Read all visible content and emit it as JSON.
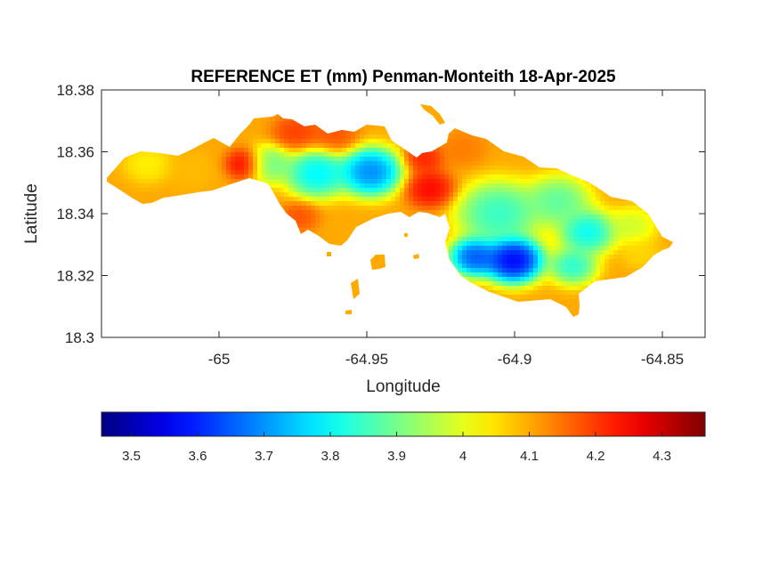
{
  "chart_data": {
    "type": "heatmap",
    "title": "REFERENCE ET (mm) Penman-Monteith 18-Apr-2025",
    "xlabel": "Longitude",
    "ylabel": "Latitude",
    "xlim": [
      -65.0385,
      -64.8355
    ],
    "ylim": [
      18.3,
      18.38
    ],
    "xticks": [
      -65,
      -64.95,
      -64.9,
      -64.85
    ],
    "xtick_labels": [
      "-65",
      "-64.95",
      "-64.9",
      "-64.85"
    ],
    "yticks": [
      18.3,
      18.32,
      18.34,
      18.36,
      18.38
    ],
    "ytick_labels": [
      "18.3",
      "18.32",
      "18.34",
      "18.36",
      "18.38"
    ],
    "colorbar": {
      "orientation": "horizontal",
      "placement": "below",
      "colormap": "jet",
      "clim": [
        3.455,
        4.365
      ],
      "ticks": [
        3.5,
        3.6,
        3.7,
        3.8,
        3.9,
        4.0,
        4.1,
        4.2,
        4.3
      ],
      "tick_labels": [
        "3.5",
        "3.6",
        "3.7",
        "3.8",
        "3.9",
        "4",
        "4.1",
        "4.2",
        "4.3"
      ]
    },
    "grid": false,
    "field": {
      "background_value": 4.1,
      "blobs": [
        {
          "lon": -64.948,
          "lat": 18.3535,
          "radius": 0.0075,
          "value": 3.6,
          "weight": 1.0
        },
        {
          "lon": -64.966,
          "lat": 18.353,
          "radius": 0.0075,
          "value": 3.72,
          "weight": 1.0
        },
        {
          "lon": -64.982,
          "lat": 18.356,
          "radius": 0.006,
          "value": 3.85,
          "weight": 0.9
        },
        {
          "lon": -64.9,
          "lat": 18.325,
          "radius": 0.007,
          "value": 3.47,
          "weight": 1.2
        },
        {
          "lon": -64.913,
          "lat": 18.326,
          "radius": 0.006,
          "value": 3.55,
          "weight": 1.0
        },
        {
          "lon": -64.905,
          "lat": 18.34,
          "radius": 0.01,
          "value": 3.78,
          "weight": 0.9
        },
        {
          "lon": -64.885,
          "lat": 18.344,
          "radius": 0.008,
          "value": 3.82,
          "weight": 0.8
        },
        {
          "lon": -64.875,
          "lat": 18.334,
          "radius": 0.007,
          "value": 3.72,
          "weight": 0.8
        },
        {
          "lon": -64.88,
          "lat": 18.323,
          "radius": 0.006,
          "value": 3.75,
          "weight": 0.7
        },
        {
          "lon": -64.86,
          "lat": 18.336,
          "radius": 0.006,
          "value": 3.95,
          "weight": 0.8
        },
        {
          "lon": -64.857,
          "lat": 18.327,
          "radius": 0.005,
          "value": 4.05,
          "weight": 0.8
        },
        {
          "lon": -65.023,
          "lat": 18.356,
          "radius": 0.006,
          "value": 4.02,
          "weight": 0.9
        },
        {
          "lon": -65.008,
          "lat": 18.354,
          "radius": 0.006,
          "value": 4.08,
          "weight": 0.9
        },
        {
          "lon": -64.99,
          "lat": 18.356,
          "radius": 0.005,
          "value": 4.3,
          "weight": 0.8
        },
        {
          "lon": -64.928,
          "lat": 18.348,
          "radius": 0.006,
          "value": 4.28,
          "weight": 0.9
        },
        {
          "lon": -64.93,
          "lat": 18.358,
          "radius": 0.005,
          "value": 4.25,
          "weight": 0.8
        },
        {
          "lon": -64.917,
          "lat": 18.361,
          "radius": 0.006,
          "value": 4.15,
          "weight": 0.8
        },
        {
          "lon": -64.972,
          "lat": 18.339,
          "radius": 0.005,
          "value": 4.2,
          "weight": 0.7
        },
        {
          "lon": -64.96,
          "lat": 18.365,
          "radius": 0.006,
          "value": 4.2,
          "weight": 0.7
        },
        {
          "lon": -64.973,
          "lat": 18.366,
          "radius": 0.006,
          "value": 4.22,
          "weight": 0.8
        }
      ]
    }
  }
}
